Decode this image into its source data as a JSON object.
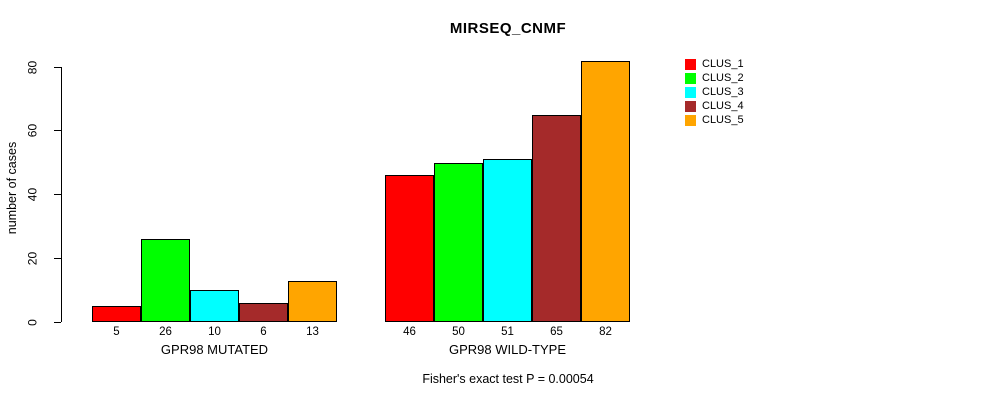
{
  "chart_data": {
    "type": "bar",
    "title": "MIRSEQ_CNMF",
    "ylabel": "number of cases",
    "xlabel": "",
    "yticks": [
      0,
      20,
      40,
      60,
      80
    ],
    "ylim": [
      0,
      85
    ],
    "grid": false,
    "legend_position": "right-outside",
    "series_names": [
      "CLUS_1",
      "CLUS_2",
      "CLUS_3",
      "CLUS_4",
      "CLUS_5"
    ],
    "series_colors": [
      "#ff0000",
      "#00ff00",
      "#00ffff",
      "#a52a2a",
      "#ffa500"
    ],
    "groups": [
      {
        "label": "GPR98 MUTATED",
        "values": [
          5,
          26,
          10,
          6,
          13
        ]
      },
      {
        "label": "GPR98 WILD-TYPE",
        "values": [
          46,
          50,
          51,
          65,
          82
        ]
      }
    ],
    "bar_value_labels_shown": true,
    "annotation": "Fisher's exact test P = 0.00054"
  }
}
